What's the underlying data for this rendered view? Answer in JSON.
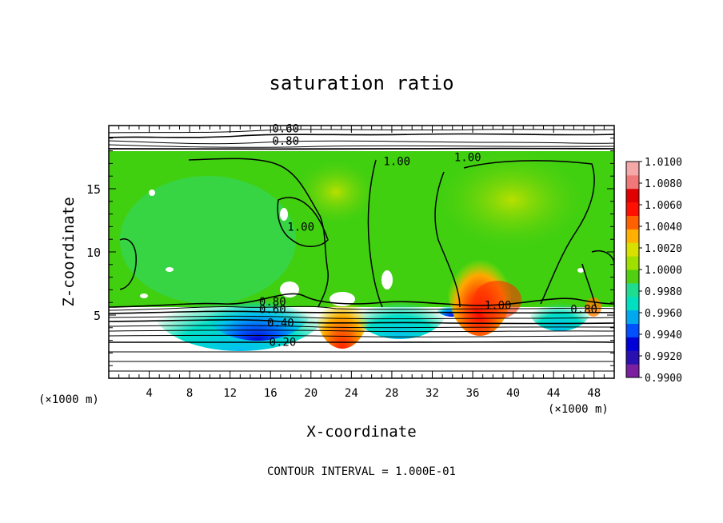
{
  "chart_data": {
    "type": "heatmap",
    "title": "saturation ratio",
    "xlabel": "X-coordinate",
    "ylabel": "Z-coordinate",
    "x_unit_label": "(×1000 m)",
    "x_unit_label_right": "(×1000 m)",
    "xlim": [
      0,
      50
    ],
    "ylim": [
      0,
      20
    ],
    "x_ticks": [
      "4",
      "8",
      "12",
      "16",
      "20",
      "24",
      "28",
      "32",
      "36",
      "40",
      "44",
      "48"
    ],
    "y_ticks": [
      "5",
      "10",
      "15"
    ],
    "footer": "CONTOUR INTERVAL = 1.000E-01",
    "colorbar": {
      "min": 0.99,
      "max": 1.01,
      "labels": [
        "1.0100",
        "1.0080",
        "1.0060",
        "1.0040",
        "1.0020",
        "1.0000",
        "0.9980",
        "0.9960",
        "0.9940",
        "0.9920",
        "0.9900"
      ],
      "colors": [
        "#7a1fa0",
        "#2a10b0",
        "#0000d8",
        "#0050ff",
        "#00a8f0",
        "#00e0c0",
        "#20dc90",
        "#50d010",
        "#a0e000",
        "#d8e000",
        "#ffb000",
        "#ff6000",
        "#ff1000",
        "#e00000",
        "#f07878",
        "#f4a8a8"
      ]
    },
    "contour_labels": [
      {
        "text": "0.60",
        "x": 17.5,
        "y": 19.6
      },
      {
        "text": "0.80",
        "x": 17.5,
        "y": 18.6
      },
      {
        "text": "1.00",
        "x": 28.5,
        "y": 17.0
      },
      {
        "text": "1.00",
        "x": 35.5,
        "y": 17.3
      },
      {
        "text": "1.00",
        "x": 19.0,
        "y": 11.8
      },
      {
        "text": "1.00",
        "x": 38.5,
        "y": 5.6
      },
      {
        "text": "0.80",
        "x": 47.0,
        "y": 5.3
      },
      {
        "text": "0.80",
        "x": 16.2,
        "y": 5.9
      },
      {
        "text": "0.60",
        "x": 16.2,
        "y": 5.3
      },
      {
        "text": "0.40",
        "x": 17.0,
        "y": 4.2
      },
      {
        "text": "0.20",
        "x": 17.2,
        "y": 2.7
      }
    ]
  }
}
